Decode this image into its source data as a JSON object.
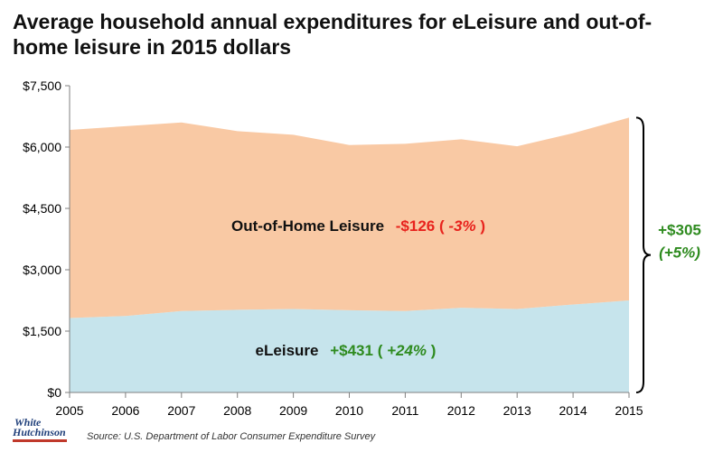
{
  "chart_data": {
    "type": "area",
    "stacked": true,
    "title": "Average household annual expenditures for eLeisure and out-of-home leisure in 2015 dollars",
    "x": [
      2005,
      2006,
      2007,
      2008,
      2009,
      2010,
      2011,
      2012,
      2013,
      2014,
      2015
    ],
    "series": [
      {
        "name": "eLeisure",
        "color": "#c6e4ec",
        "values": [
          1820,
          1870,
          1990,
          2020,
          2040,
          2010,
          1990,
          2070,
          2040,
          2150,
          2250
        ]
      },
      {
        "name": "Out-of-Home Leisure",
        "color": "#f9c9a4",
        "values": [
          4600,
          4640,
          4610,
          4370,
          4260,
          4040,
          4090,
          4120,
          3980,
          4190,
          4470
        ]
      }
    ],
    "ylim": [
      0,
      7500
    ],
    "y_ticks": [
      "$0",
      "$1,500",
      "$3,000",
      "$4,500",
      "$6,000",
      "$7,500"
    ],
    "y_tick_values": [
      0,
      1500,
      3000,
      4500,
      6000,
      7500
    ],
    "grid": false,
    "annotations": {
      "out_of_home_label": "Out-of-Home Leisure",
      "out_of_home_change": "-$126 (",
      "out_of_home_pct": "-3%",
      "close_paren": ")",
      "eleisure_label": "eLeisure",
      "eleisure_change": "+$431 (",
      "eleisure_pct": "+24%",
      "total_change": "+$305",
      "total_pct": "(+5%)"
    },
    "annotation_colors": {
      "negative": "#e8231d",
      "positive": "#2e8b1f"
    }
  },
  "source": "Source: U.S. Department of Labor Consumer Expenditure Survey",
  "logo": {
    "line1": "White",
    "line2": "Hutchinson"
  }
}
